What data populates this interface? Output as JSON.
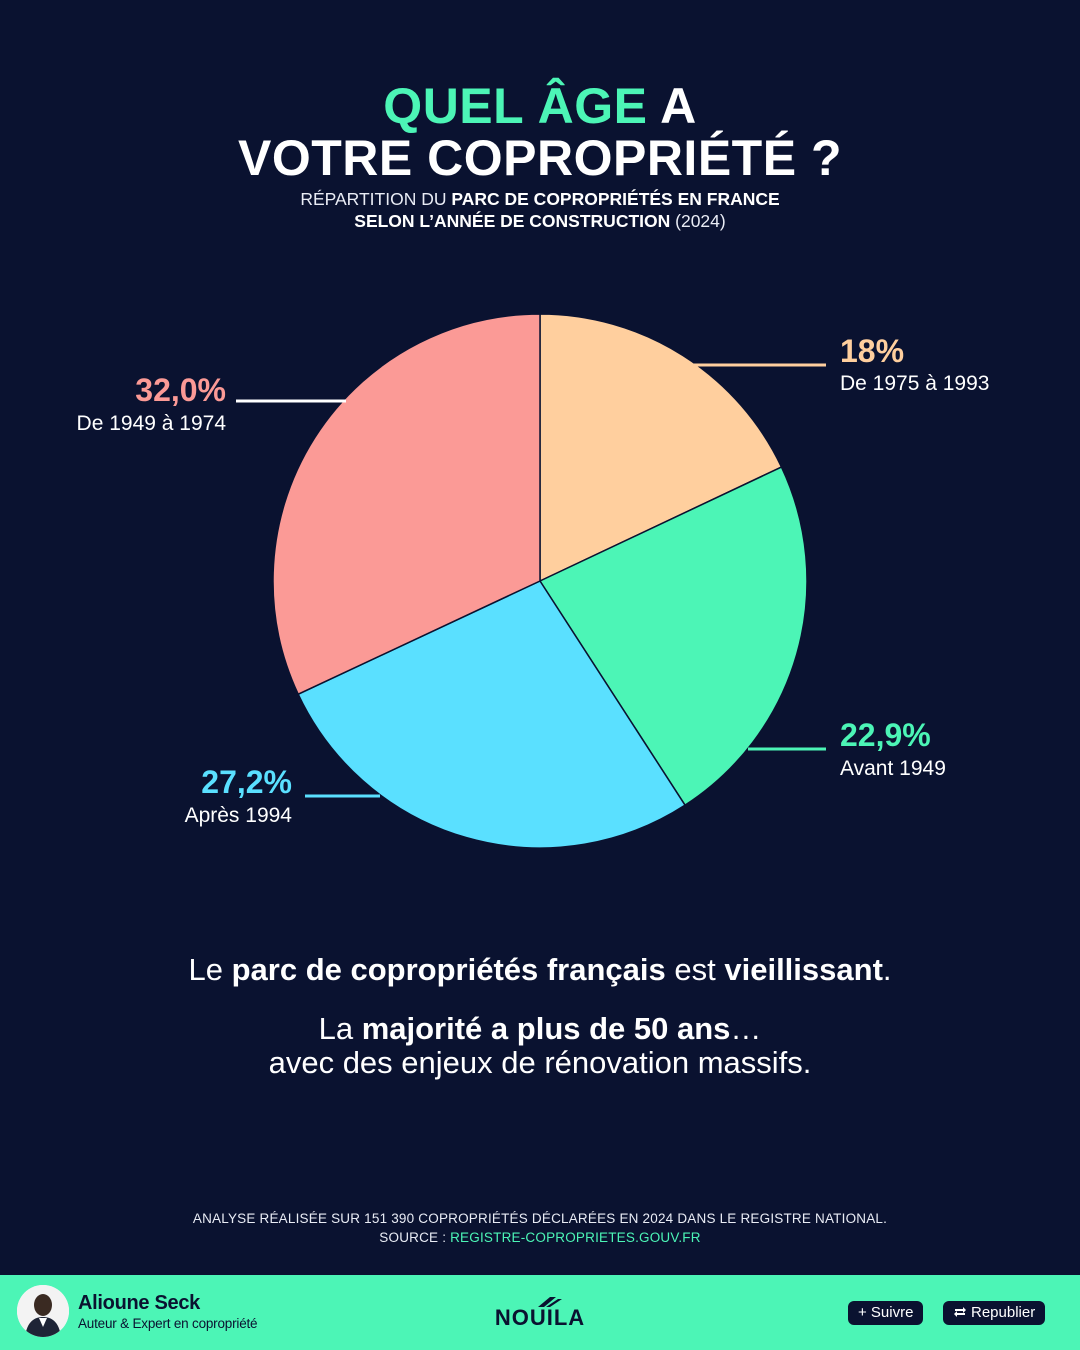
{
  "header": {
    "title_accent": "QUEL ÂGE",
    "title_rest_line1": "A",
    "title_line2": "VOTRE COPROPRIÉTÉ ?",
    "subtitle_pre": "RÉPARTITION DU ",
    "subtitle_bold1": "PARC DE COPROPRIÉTÉS EN FRANCE",
    "subtitle_bold2": "SELON L’ANNÉE DE CONSTRUCTION",
    "subtitle_post": " (2024)"
  },
  "chart_data": {
    "type": "pie",
    "slices": [
      {
        "label": "De 1975 à 1993",
        "value": 18,
        "display": "18%",
        "color": "#ffcf9e"
      },
      {
        "label": "Avant 1949",
        "value": 22.9,
        "display": "22,9%",
        "color": "#4cf5b6"
      },
      {
        "label": "Après 1994",
        "value": 27.2,
        "display": "27,2%",
        "color": "#5ae0ff"
      },
      {
        "label": "De 1949 à 1974",
        "value": 32.0,
        "display": "32,0%",
        "color": "#fb9a96"
      }
    ],
    "start": "12 o'clock",
    "direction": "clockwise",
    "slice_border": "#0a1230"
  },
  "message": {
    "l1_a": "Le ",
    "l1_b": "parc de copropriétés français",
    "l1_c": " est ",
    "l1_d": "vieillissant",
    "l1_e": ".",
    "l2_a": "La ",
    "l2_b": "majorité a plus de 50 ans",
    "l2_c": "…",
    "l3": "avec des enjeux de rénovation massifs."
  },
  "footnote": {
    "analysis": "ANALYSE RÉALISÉE SUR 151 390 COPROPRIÉTÉS DÉCLARÉES EN 2024 DANS LE REGISTRE NATIONAL.",
    "source_label": "SOURCE : ",
    "source_link": "REGISTRE-COPROPRIETES.GOUV.FR"
  },
  "footer": {
    "author_name": "Alioune Seck",
    "author_role": "Auteur & Expert en copropriété",
    "logo": "NOUILA",
    "follow_label": "+ Suivre",
    "repost_label": "Republier",
    "repost_icon": "repost-icon",
    "bg_color": "#4cf5b6"
  }
}
